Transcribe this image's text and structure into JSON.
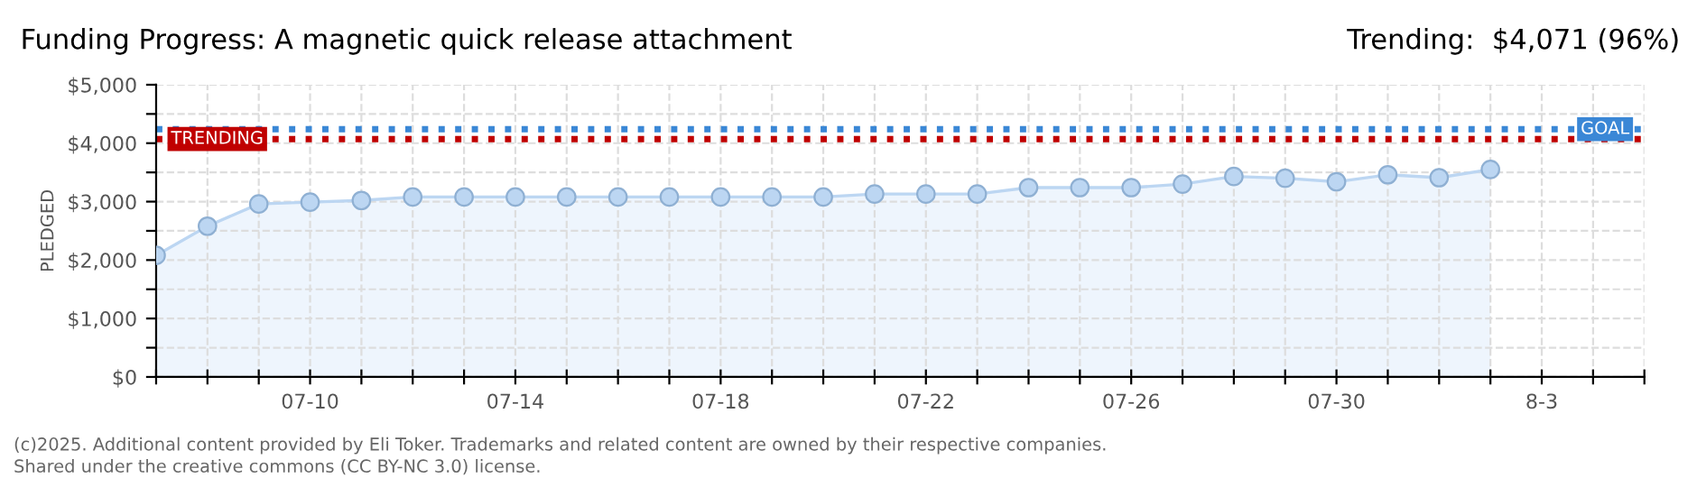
{
  "chart_data": {
    "type": "area",
    "title": "Funding Progress: A magnetic quick release attachment",
    "subtitle": "Trending:  $4,071 (96%)",
    "ylabel": "PLEDGED",
    "x": [
      "2025-07-07",
      "2025-07-08",
      "2025-07-09",
      "2025-07-10",
      "2025-07-11",
      "2025-07-12",
      "2025-07-13",
      "2025-07-14",
      "2025-07-15",
      "2025-07-16",
      "2025-07-17",
      "2025-07-18",
      "2025-07-19",
      "2025-07-20",
      "2025-07-21",
      "2025-07-22",
      "2025-07-23",
      "2025-07-24",
      "2025-07-25",
      "2025-07-26",
      "2025-07-27",
      "2025-07-28",
      "2025-07-29",
      "2025-07-30",
      "2025-07-31",
      "2025-08-01",
      "2025-08-02"
    ],
    "series": [
      {
        "color": "#bcd6f2",
        "values": [
          2080,
          2580,
          2960,
          2990,
          3020,
          3080,
          3080,
          3080,
          3080,
          3080,
          3080,
          3080,
          3080,
          3080,
          3130,
          3130,
          3130,
          3240,
          3240,
          3240,
          3300,
          3430,
          3400,
          3340,
          3460,
          3410,
          3550
        ]
      }
    ],
    "marker": "circle",
    "grid": true,
    "ylim": [
      0,
      5000
    ],
    "yticks": [
      {
        "value": 0,
        "label": "$0"
      },
      {
        "value": 500,
        "label": null
      },
      {
        "value": 1000,
        "label": "$1,000"
      },
      {
        "value": 1500,
        "label": null
      },
      {
        "value": 2000,
        "label": "$2,000"
      },
      {
        "value": 2500,
        "label": null
      },
      {
        "value": 3000,
        "label": "$3,000"
      },
      {
        "value": 3500,
        "label": null
      },
      {
        "value": 4000,
        "label": "$4,000"
      },
      {
        "value": 4500,
        "label": null
      },
      {
        "value": 5000,
        "label": "$5,000"
      }
    ],
    "xlim": [
      "2025-07-07",
      "2025-08-05"
    ],
    "xticks": [
      {
        "value": "2025-07-07",
        "label": null
      },
      {
        "value": "2025-07-08",
        "label": null
      },
      {
        "value": "2025-07-09",
        "label": null
      },
      {
        "value": "2025-07-10",
        "label": "07-10"
      },
      {
        "value": "2025-07-11",
        "label": null
      },
      {
        "value": "2025-07-12",
        "label": null
      },
      {
        "value": "2025-07-13",
        "label": null
      },
      {
        "value": "2025-07-14",
        "label": "07-14"
      },
      {
        "value": "2025-07-15",
        "label": null
      },
      {
        "value": "2025-07-16",
        "label": null
      },
      {
        "value": "2025-07-17",
        "label": null
      },
      {
        "value": "2025-07-18",
        "label": "07-18"
      },
      {
        "value": "2025-07-19",
        "label": null
      },
      {
        "value": "2025-07-20",
        "label": null
      },
      {
        "value": "2025-07-21",
        "label": null
      },
      {
        "value": "2025-07-22",
        "label": "07-22"
      },
      {
        "value": "2025-07-23",
        "label": null
      },
      {
        "value": "2025-07-24",
        "label": null
      },
      {
        "value": "2025-07-25",
        "label": null
      },
      {
        "value": "2025-07-26",
        "label": "07-26"
      },
      {
        "value": "2025-07-27",
        "label": null
      },
      {
        "value": "2025-07-28",
        "label": null
      },
      {
        "value": "2025-07-29",
        "label": null
      },
      {
        "value": "2025-07-30",
        "label": "07-30"
      },
      {
        "value": "2025-07-31",
        "label": null
      },
      {
        "value": "2025-08-01",
        "label": null
      },
      {
        "value": "2025-08-02",
        "label": null
      },
      {
        "value": "2025-08-03",
        "label": "8-3"
      },
      {
        "value": "2025-08-04",
        "label": null
      },
      {
        "value": "2025-08-05",
        "label": null
      }
    ],
    "ref_lines": [
      {
        "axis": "y",
        "value": 4240,
        "label": "GOAL",
        "color": "#3a87d6",
        "line_style": "dotted"
      },
      {
        "axis": "y",
        "value": 4071,
        "label": "TRENDING",
        "color": "#c00000",
        "line_style": "dotted"
      }
    ],
    "annotations": [
      "(c)2025. Additional content provided by Eli Toker. Trademarks and related content are owned by their respective companies.",
      "Shared under the creative commons (CC BY-NC 3.0) license."
    ]
  }
}
